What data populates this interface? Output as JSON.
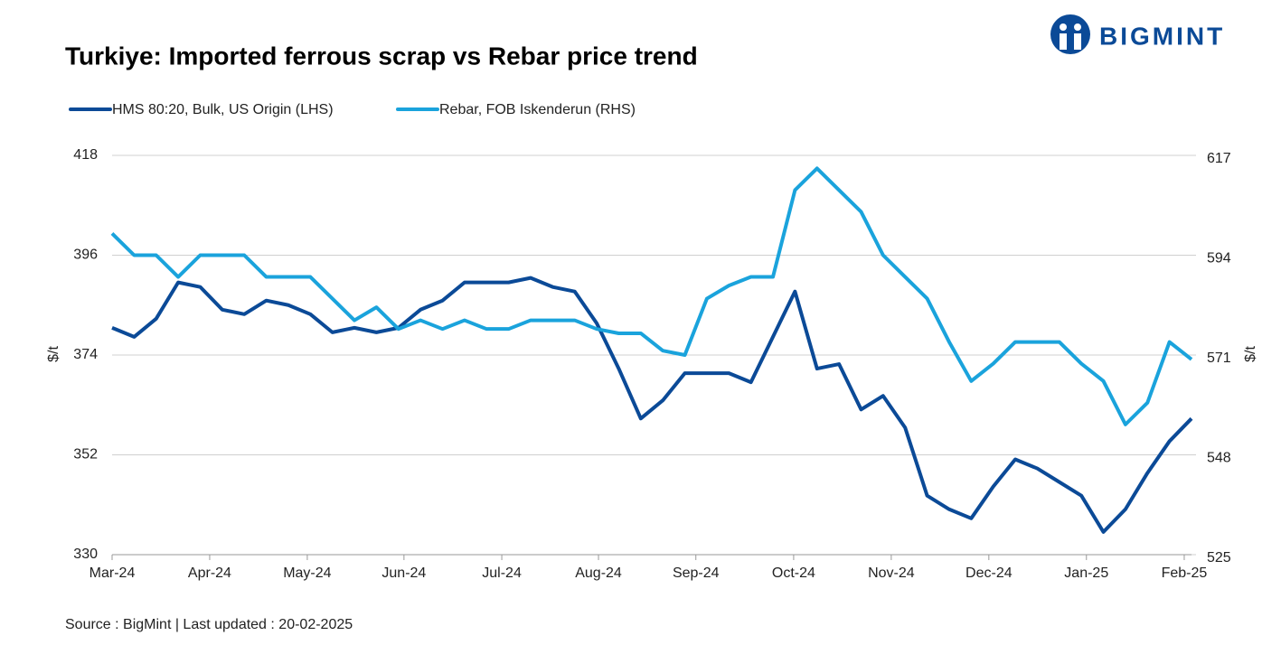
{
  "logo": "BIGMINT",
  "chart_data": {
    "type": "line",
    "title": "Turkiye: Imported ferrous scrap vs Rebar price trend",
    "source": "Source : BigMint | Last updated : 20-02-2025",
    "ylabel": "$/t",
    "y2label": "$/t",
    "xlim": [
      0,
      49
    ],
    "xticks": [
      {
        "value": 0,
        "label": "Mar-24"
      },
      {
        "value": 4.43,
        "label": "Apr-24"
      },
      {
        "value": 8.86,
        "label": "May-24"
      },
      {
        "value": 13.25,
        "label": "Jun-24"
      },
      {
        "value": 17.69,
        "label": "Jul-24"
      },
      {
        "value": 22.08,
        "label": "Aug-24"
      },
      {
        "value": 26.5,
        "label": "Sep-24"
      },
      {
        "value": 30.94,
        "label": "Oct-24"
      },
      {
        "value": 35.37,
        "label": "Nov-24"
      },
      {
        "value": 39.8,
        "label": "Dec-24"
      },
      {
        "value": 44.23,
        "label": "Jan-25"
      },
      {
        "value": 48.67,
        "label": "Feb-25"
      }
    ],
    "ylim": [
      330,
      418
    ],
    "yticks": [
      330,
      352,
      374,
      396,
      418
    ],
    "y2lim": [
      525,
      617
    ],
    "y2ticks": [
      525,
      548,
      571,
      594,
      617
    ],
    "grid": true,
    "series": [
      {
        "name": "HMS 80:20, Bulk, US Origin (LHS)",
        "color": "#0b4a97",
        "axis": "y",
        "values": [
          380,
          378,
          382,
          390,
          389,
          384,
          383,
          386,
          385,
          383,
          379,
          380,
          379,
          380,
          384,
          386,
          390,
          390,
          390,
          391,
          389,
          388,
          381,
          371,
          360,
          364,
          370,
          370,
          370,
          368,
          378,
          388,
          371,
          372,
          362,
          365,
          358,
          343,
          340,
          338,
          345,
          351,
          349,
          346,
          343,
          335,
          340,
          348,
          355,
          360
        ]
      },
      {
        "name": "Rebar, FOB Iskenderun (RHS)",
        "color": "#1aa3dc",
        "axis": "y2",
        "values": [
          599,
          594,
          594,
          589,
          594,
          594,
          594,
          589,
          589,
          589,
          584,
          579,
          582,
          577,
          579,
          577,
          579,
          577,
          577,
          579,
          579,
          579,
          577,
          576,
          576,
          572,
          571,
          584,
          587,
          589,
          589,
          609,
          614,
          609,
          604,
          594,
          589,
          584,
          574,
          565,
          569,
          574,
          574,
          574,
          569,
          565,
          555,
          560,
          574,
          570
        ]
      }
    ]
  }
}
